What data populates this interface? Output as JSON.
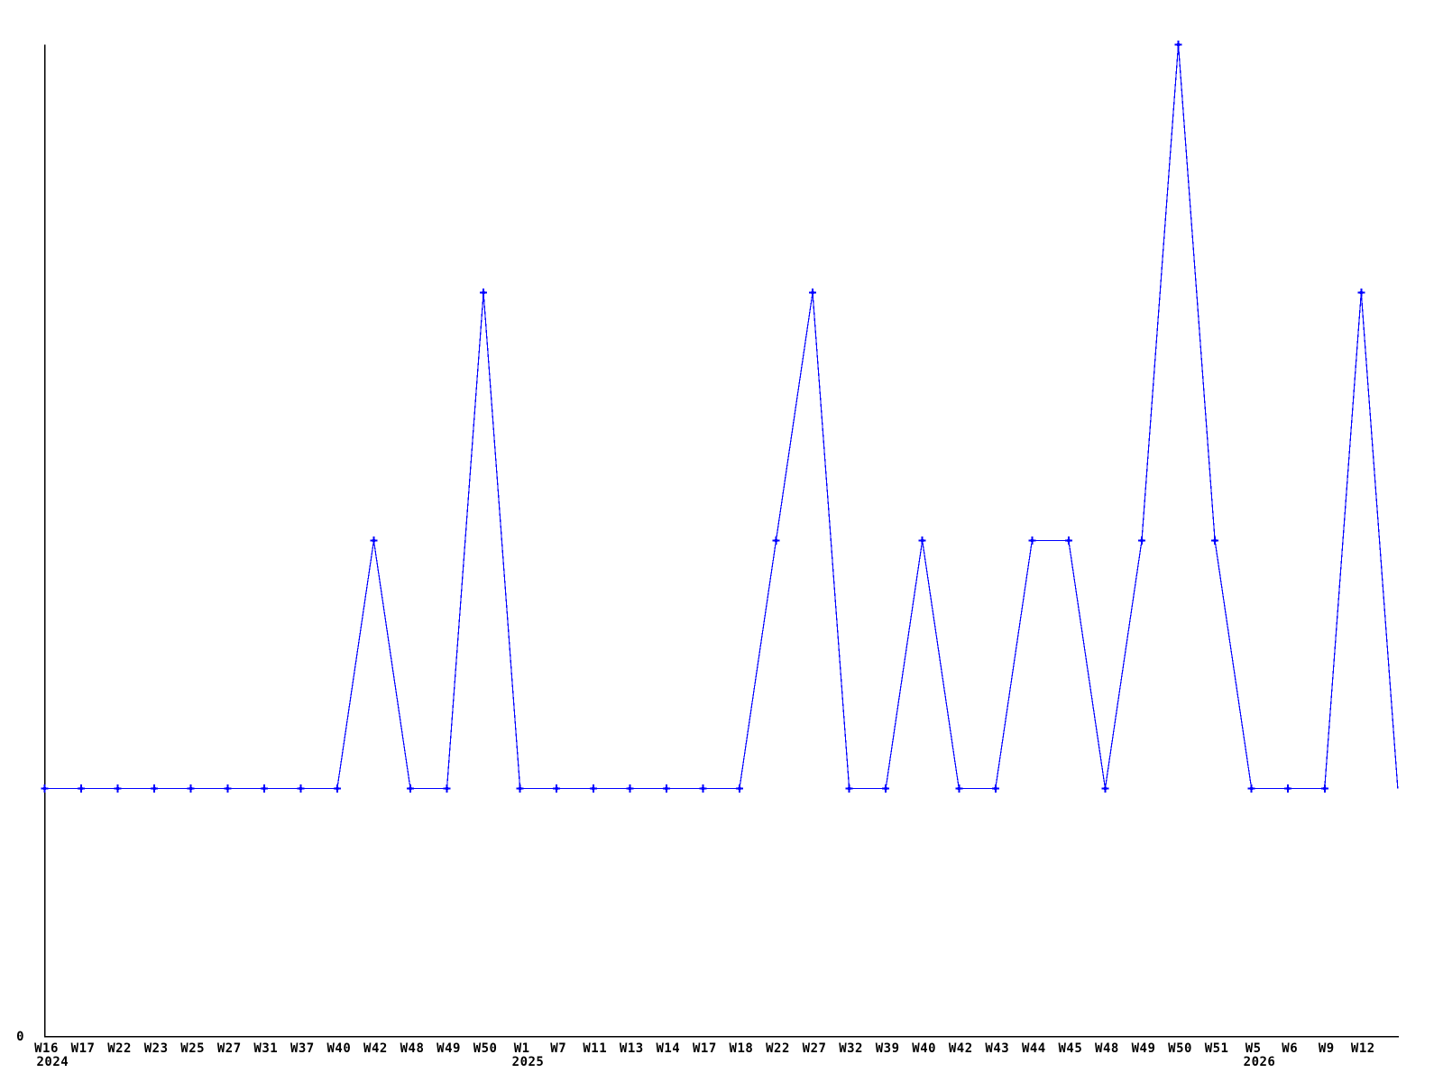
{
  "chart_data": {
    "type": "line",
    "title": "",
    "xlabel": "",
    "ylabel": "",
    "legend": [],
    "grid": false,
    "line_color": "#0000ff",
    "marker_color": "#0000ff",
    "marker_shape": "plus",
    "axis_color": "#000000",
    "background_color": "#ffffff",
    "y_axis": {
      "min": 0,
      "max": 4,
      "tick_labels": [
        "0"
      ]
    },
    "x_axis": {
      "unit": "ISO week",
      "year_rows": [
        "2024",
        "2025",
        "2026"
      ]
    },
    "points": [
      {
        "week": "W16",
        "year": "2024",
        "value": 1
      },
      {
        "week": "W17",
        "value": 1
      },
      {
        "week": "W22",
        "value": 1
      },
      {
        "week": "W23",
        "value": 1
      },
      {
        "week": "W25",
        "value": 1
      },
      {
        "week": "W27",
        "value": 1
      },
      {
        "week": "W31",
        "value": 1
      },
      {
        "week": "W37",
        "value": 1
      },
      {
        "week": "W40",
        "value": 1
      },
      {
        "week": "W42",
        "value": 2
      },
      {
        "week": "W48",
        "value": 1
      },
      {
        "week": "W49",
        "value": 1
      },
      {
        "week": "W50",
        "value": 3
      },
      {
        "week": "W1",
        "year": "2025",
        "value": 1
      },
      {
        "week": "W7",
        "value": 1
      },
      {
        "week": "W11",
        "value": 1
      },
      {
        "week": "W13",
        "value": 1
      },
      {
        "week": "W14",
        "value": 1
      },
      {
        "week": "W17",
        "value": 1
      },
      {
        "week": "W18",
        "value": 1
      },
      {
        "week": "W22",
        "value": 2
      },
      {
        "week": "W27",
        "value": 3
      },
      {
        "week": "W32",
        "value": 1
      },
      {
        "week": "W39",
        "value": 1
      },
      {
        "week": "W40",
        "value": 2
      },
      {
        "week": "W42",
        "value": 1
      },
      {
        "week": "W43",
        "value": 1
      },
      {
        "week": "W44",
        "value": 2
      },
      {
        "week": "W45",
        "value": 2
      },
      {
        "week": "W48",
        "value": 1
      },
      {
        "week": "W49",
        "value": 2
      },
      {
        "week": "W50",
        "value": 4
      },
      {
        "week": "W51",
        "value": 2
      },
      {
        "week": "W5",
        "year": "2026",
        "value": 1
      },
      {
        "week": "W6",
        "value": 1
      },
      {
        "week": "W9",
        "value": 1
      },
      {
        "week": "W12",
        "value": 3
      },
      {
        "week": "",
        "value": 1,
        "marker": false
      }
    ]
  }
}
